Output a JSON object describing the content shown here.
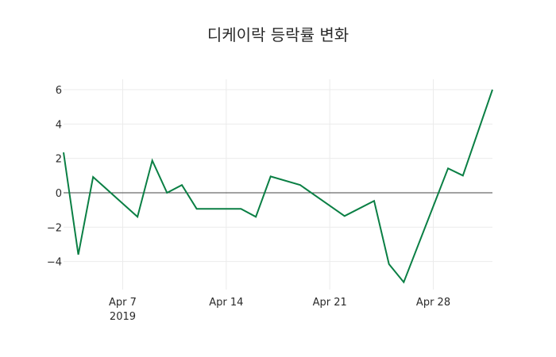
{
  "chart_data": {
    "type": "line",
    "title": "디케이락 등락률 변화",
    "xlabel": "",
    "ylabel": "",
    "x": [
      "2019-04-03",
      "2019-04-04",
      "2019-04-05",
      "2019-04-08",
      "2019-04-09",
      "2019-04-10",
      "2019-04-11",
      "2019-04-12",
      "2019-04-15",
      "2019-04-16",
      "2019-04-17",
      "2019-04-19",
      "2019-04-22",
      "2019-04-24",
      "2019-04-25",
      "2019-04-26",
      "2019-04-29",
      "2019-04-30",
      "2019-05-02"
    ],
    "series": [
      {
        "name": "등락률",
        "color": "#0a7f44",
        "values": [
          2.35,
          -3.6,
          0.92,
          -1.4,
          1.88,
          0.0,
          0.45,
          -0.93,
          -0.93,
          -1.4,
          0.95,
          0.45,
          -1.35,
          -0.47,
          -4.15,
          -5.2,
          1.42,
          1.0,
          6.0
        ]
      }
    ],
    "yticks": [
      6,
      4,
      2,
      0,
      -2,
      -4
    ],
    "ytick_labels": [
      "6",
      "4",
      "2",
      "0",
      "−2",
      "−4"
    ],
    "xticks": [
      {
        "date": "2019-04-07",
        "label": "Apr 7",
        "sublabel": "2019"
      },
      {
        "date": "2019-04-14",
        "label": "Apr 14",
        "sublabel": ""
      },
      {
        "date": "2019-04-21",
        "label": "Apr 21",
        "sublabel": ""
      },
      {
        "date": "2019-04-28",
        "label": "Apr 28",
        "sublabel": ""
      }
    ],
    "ylim": [
      -5.6,
      6.6
    ],
    "xlim": [
      "2019-04-03",
      "2019-05-02"
    ],
    "grid": true,
    "legend": "none"
  }
}
